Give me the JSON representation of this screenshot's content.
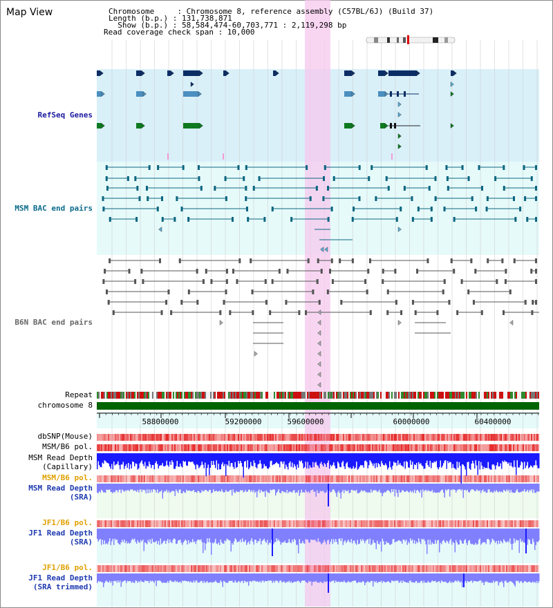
{
  "page": {
    "title": "Map View"
  },
  "header": {
    "line1": "Chromosome     : Chromosome 8, reference assembly (C57BL/6J) (Build 37)",
    "line2": "Length (b.p.) : 131,738,871",
    "line3": "  Show (b.p.) : 58,584,474-60,703,771 : 2,119,298 bp",
    "line4": "Read coverage check span : 10,000"
  },
  "tracks": {
    "refseq": "RefSeq Genes",
    "msm_bac": "MSM BAC end pairs",
    "b6n_bac": "B6N BAC end pairs",
    "repeat": "Repeat",
    "chromosome": "chromosome 8",
    "dbsnp": "dbSNP(Mouse)",
    "msm_pol1": "MSM/B6 pol.",
    "msm_depth_cap_1": "MSM Read Depth",
    "msm_depth_cap_2": "(Capillary)",
    "msm_pol2": "MSM/B6 pol.",
    "msm_depth_sra_1": "MSM Read Depth",
    "msm_depth_sra_2": "(SRA)",
    "jf1_pol1": "JF1/B6 pol.",
    "jf1_depth_1": "JF1 Read Depth",
    "jf1_depth_2": "(SRA)",
    "jf1_pol2": "JF1/B6 pol.",
    "jf1_trim_1": "JF1 Read Depth",
    "jf1_trim_2": "(SRA trimmed)"
  },
  "axis": {
    "ticks": [
      "58800000",
      "59200000",
      "59600000",
      "60000000",
      "60400000"
    ]
  },
  "colors": {
    "refseq_bg": "#d9f0f9",
    "msm_bg": "#e6fafa",
    "highlight": "#f6c8ee",
    "chromosome": "#006400",
    "depth": "#1a1aff",
    "depth_light": "#8080ff"
  }
}
